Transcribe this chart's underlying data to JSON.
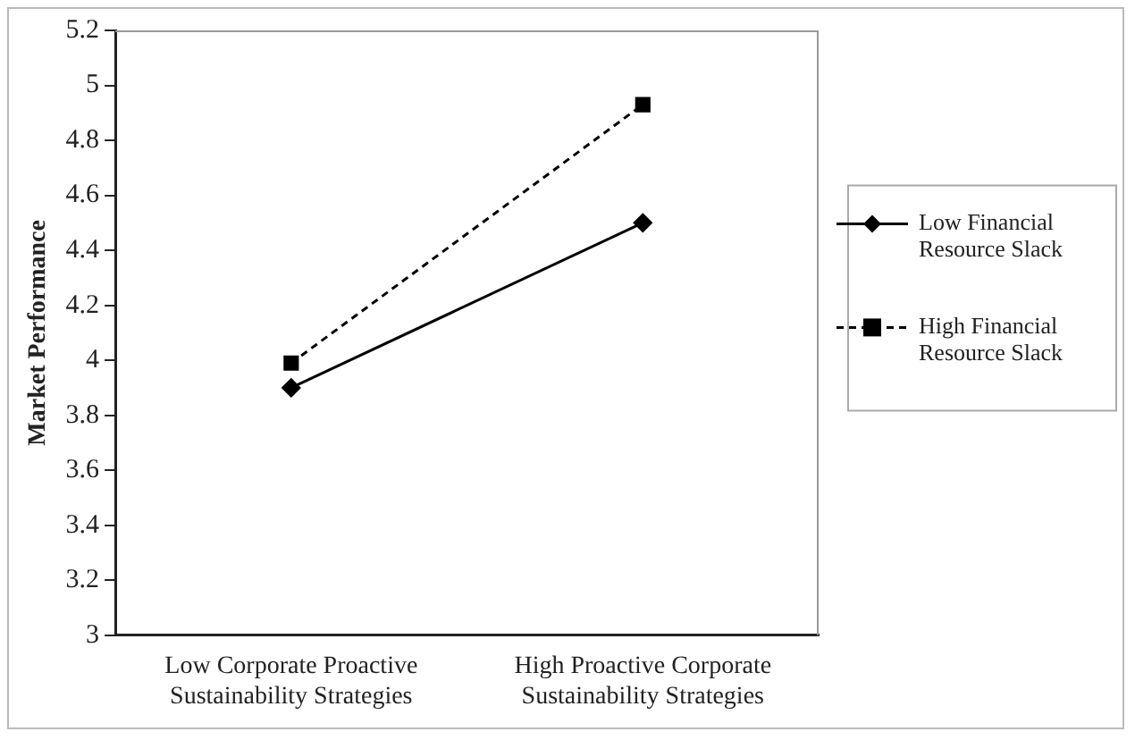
{
  "chart_data": {
    "type": "line",
    "ylabel": "Market Performance",
    "categories": [
      "Low Corporate Proactive Sustainability Strategies",
      "High Proactive Corporate Sustainability Strategies"
    ],
    "series": [
      {
        "name": "Low Financial Resource Slack",
        "color": "#000000",
        "values": [
          3.9,
          4.5
        ],
        "marker": "diamond",
        "line_style": "solid"
      },
      {
        "name": "High Financial Resource Slack",
        "color": "#000000",
        "values": [
          3.99,
          4.93
        ],
        "marker": "square",
        "line_style": "dashed"
      }
    ],
    "ylim": [
      3,
      5.2
    ],
    "yticks": [
      3,
      3.2,
      3.4,
      3.6,
      3.8,
      4,
      4.2,
      4.4,
      4.6,
      4.8,
      5,
      5.2
    ],
    "grid": false,
    "legend": "right"
  }
}
